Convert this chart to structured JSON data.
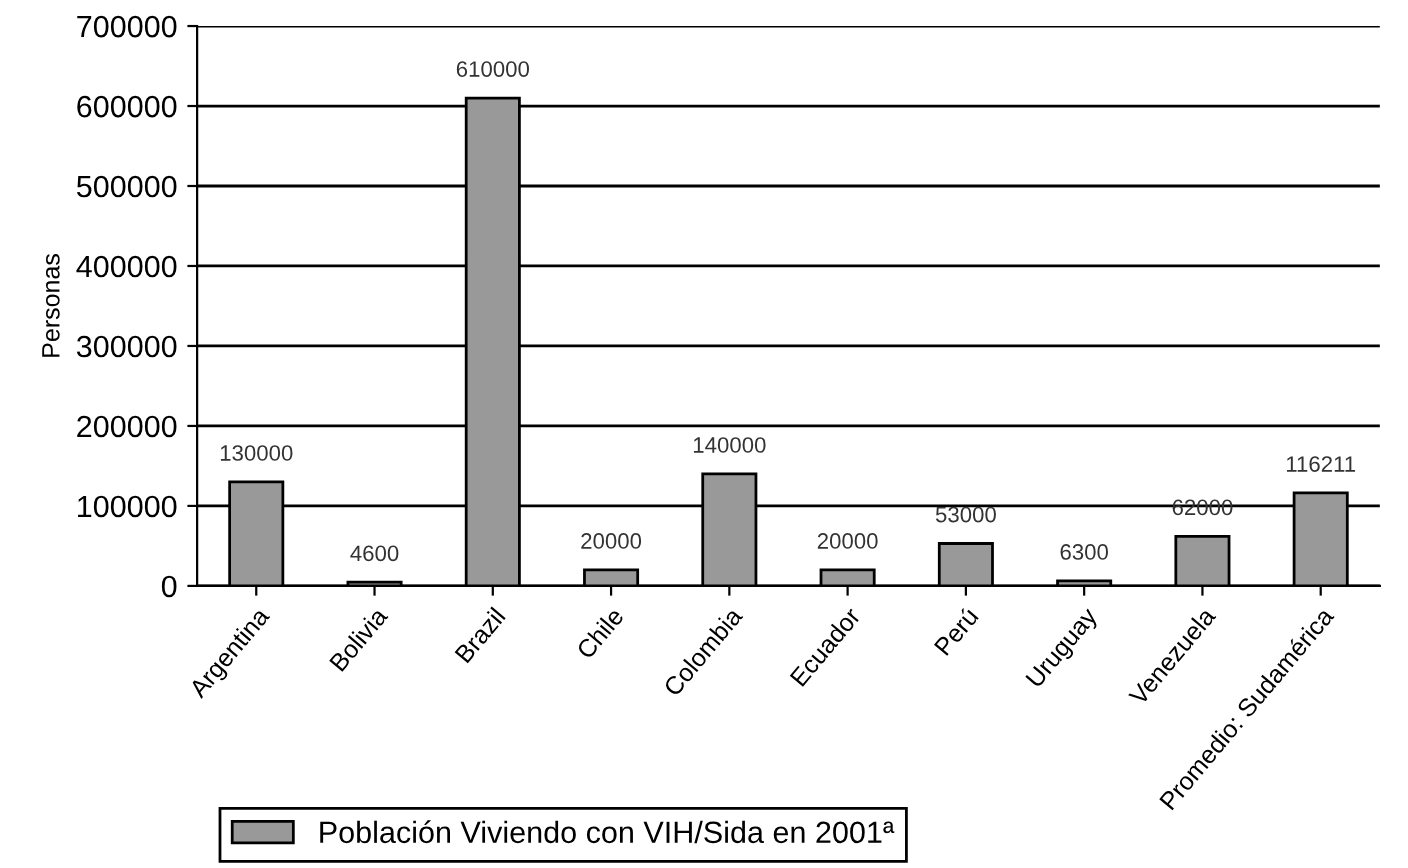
{
  "chart_data": {
    "type": "bar",
    "ylabel": "Personas",
    "categories": [
      "Argentina",
      "Bolivia",
      "Brazil",
      "Chile",
      "Colombia",
      "Ecuador",
      "Perú",
      "Uruguay",
      "Venezuela",
      "Promedio: Sudamérica"
    ],
    "series": [
      {
        "name": "Población Viviendo con VIH/Sida en 2001ª",
        "color": "#999999",
        "values": [
          130000,
          4600,
          610000,
          20000,
          140000,
          20000,
          53000,
          6300,
          62000,
          116211
        ]
      }
    ],
    "ylim": [
      0,
      700000
    ],
    "yticks": [
      0,
      100000,
      200000,
      300000,
      400000,
      500000,
      600000,
      700000
    ],
    "grid": "y",
    "legend": "bottom",
    "data_labels": true
  }
}
